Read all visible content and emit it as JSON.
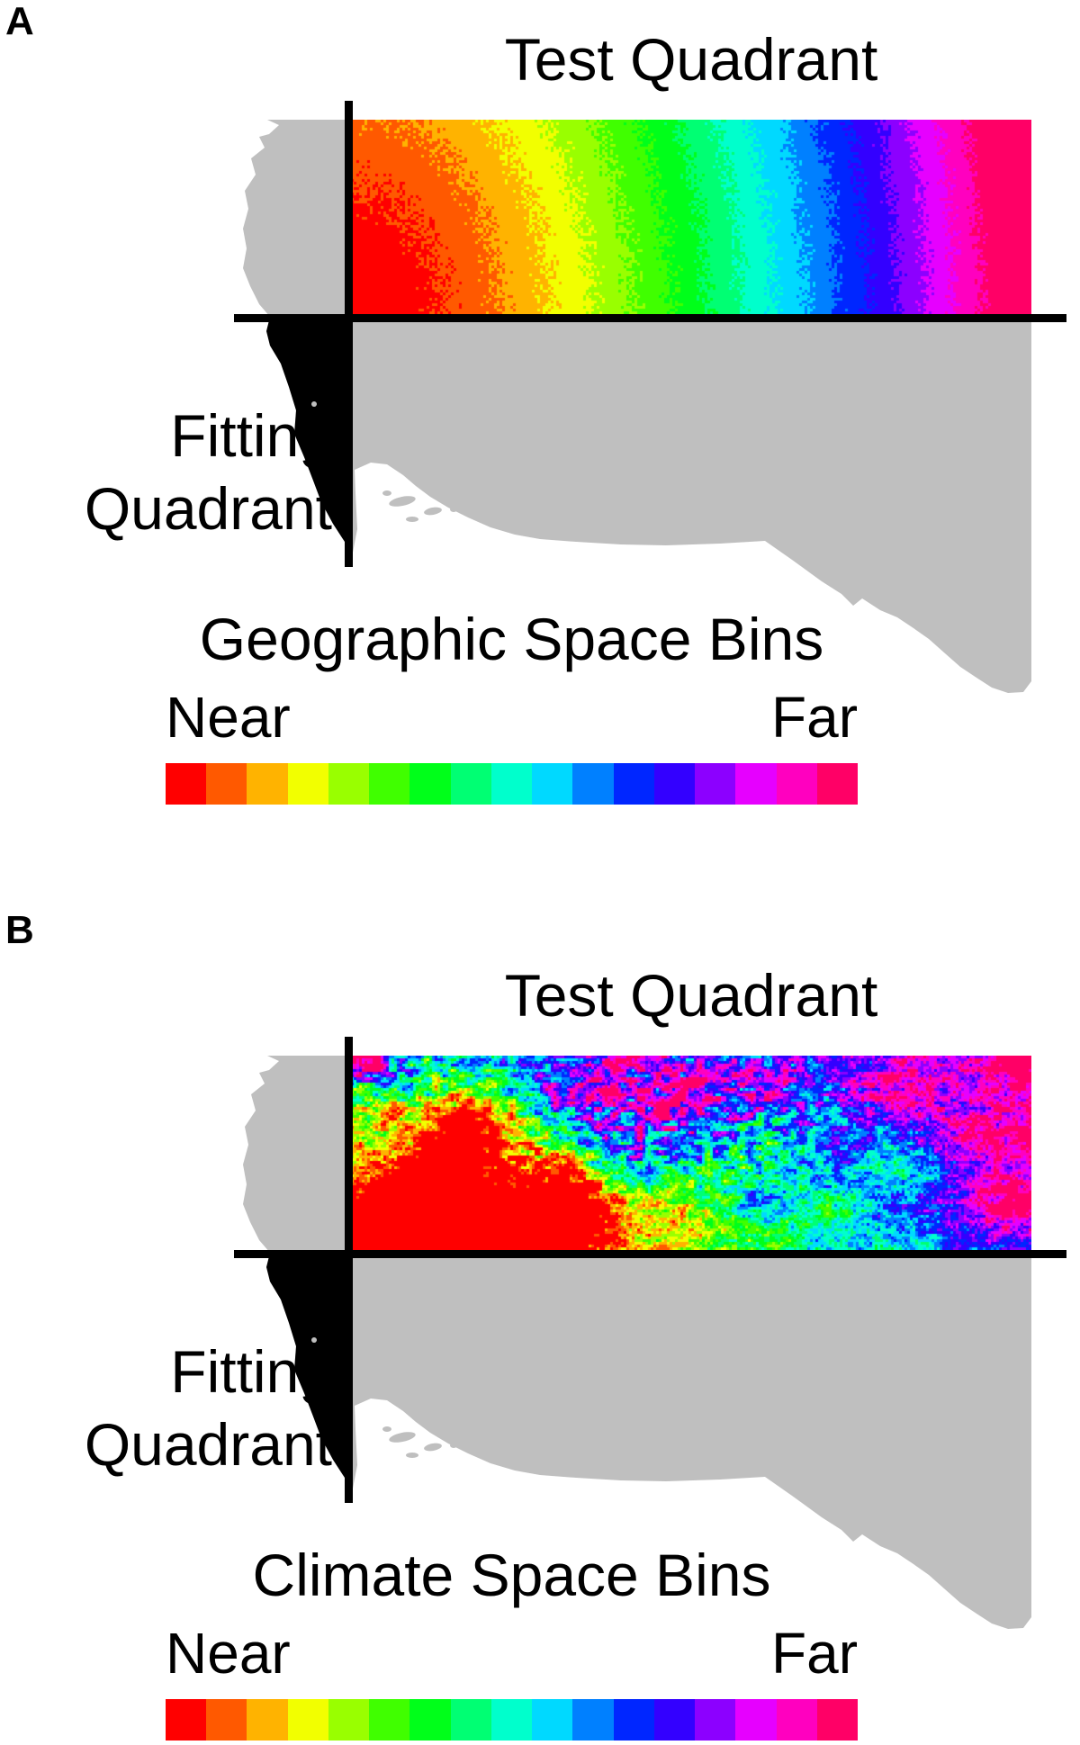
{
  "colors": {
    "background": "#FFFFFF",
    "land": "#BFBFBF",
    "fitting_region": "#000000",
    "axis": "#000000",
    "text": "#000000"
  },
  "bins": {
    "count": 17,
    "near": "Near",
    "far": "Far",
    "palette": [
      "#FF0000",
      "#FF5900",
      "#FFB300",
      "#F2FF00",
      "#99FF00",
      "#40FF00",
      "#00FF1A",
      "#00FF73",
      "#00FFCC",
      "#00D9FF",
      "#0080FF",
      "#0026FF",
      "#3300FF",
      "#8C00FF",
      "#E600FF",
      "#FF00BF",
      "#FF0066"
    ]
  },
  "panelA": {
    "label": "A",
    "title": "Test Quadrant",
    "fitting_line1": "Fitting",
    "fitting_line2": "Quadrant",
    "legend_title": "Geographic Space Bins",
    "pattern": "geographic"
  },
  "panelB": {
    "label": "B",
    "title": "Test Quadrant",
    "fitting_line1": "Fitting",
    "fitting_line2": "Quadrant",
    "legend_title": "Climate Space Bins",
    "pattern": "climate"
  }
}
